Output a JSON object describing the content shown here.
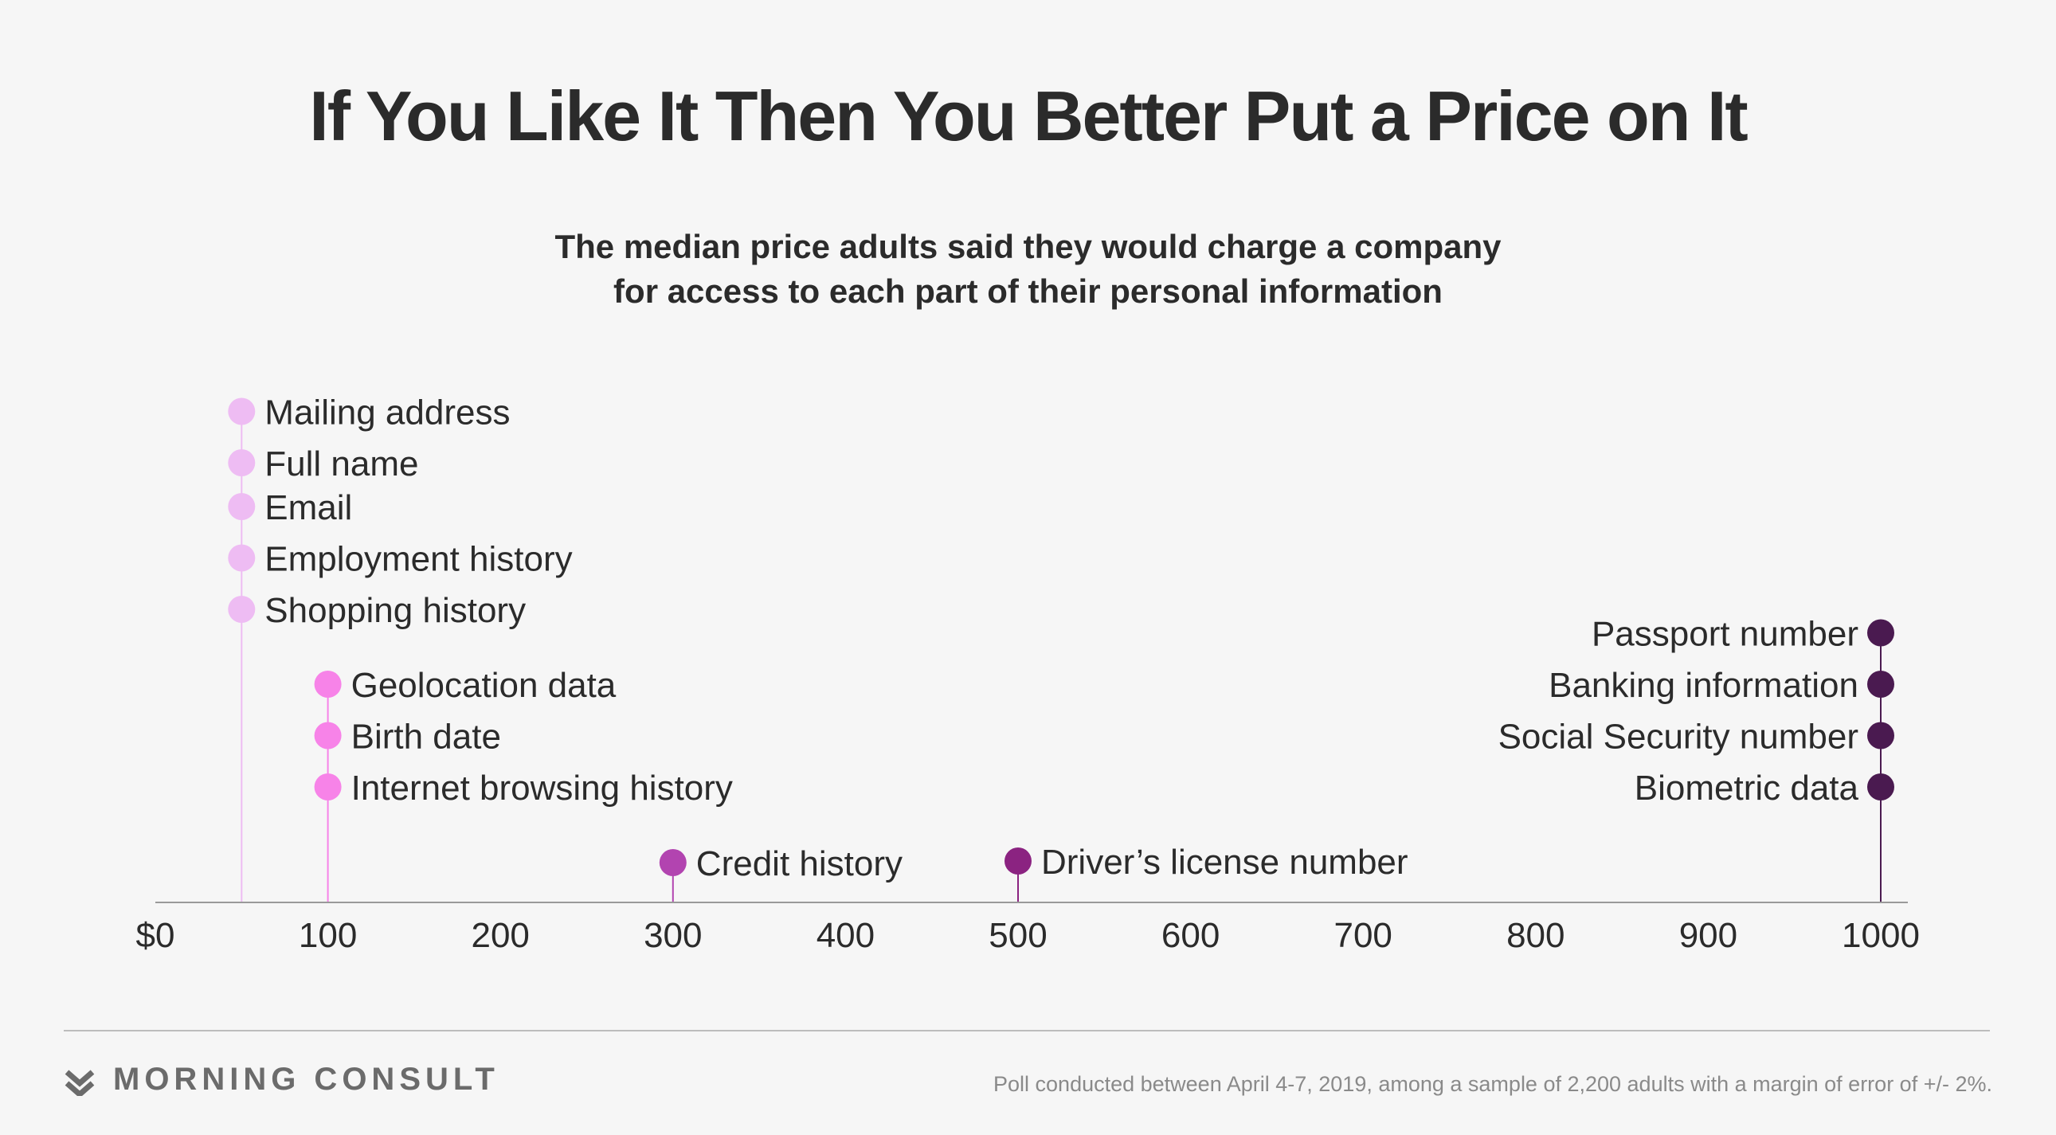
{
  "chart_data": {
    "type": "scatter",
    "title": "If You Like It Then You Better Put a Price on It",
    "subtitle_lines": [
      "The median price adults said they would charge a company",
      "for access to each part of their personal information"
    ],
    "xlabel": "",
    "ylabel": "",
    "xlim": [
      0,
      1000
    ],
    "x_tick_values": [
      0,
      100,
      200,
      300,
      400,
      500,
      600,
      700,
      800,
      900,
      1000
    ],
    "x_tick_labels": [
      "$0",
      "100",
      "200",
      "300",
      "400",
      "500",
      "600",
      "700",
      "800",
      "900",
      "1000"
    ],
    "groups": [
      {
        "value": 50,
        "color": "#eebcf3",
        "label_side": "right",
        "items": [
          "Mailing address",
          "Full name",
          "Email",
          "Employment history",
          "Shopping history"
        ]
      },
      {
        "value": 100,
        "color": "#f783e8",
        "label_side": "right",
        "items": [
          "Geolocation data",
          "Birth date",
          "Internet browsing history"
        ]
      },
      {
        "value": 300,
        "color": "#b244b0",
        "label_side": "right",
        "items": [
          "Credit history"
        ]
      },
      {
        "value": 500,
        "color": "#8b2381",
        "label_side": "right",
        "items": [
          "Driver’s license number"
        ]
      },
      {
        "value": 1000,
        "color": "#4a1a50",
        "label_side": "left",
        "items": [
          "Passport number",
          "Banking information",
          "Social Security number",
          "Biometric data"
        ]
      }
    ]
  },
  "footer": {
    "brand": "MORNING CONSULT",
    "logo_icon": "morning-consult-chevron-icon",
    "note": "Poll conducted between April 4-7, 2019, among a sample of 2,200 adults with a margin of error of +/- 2%."
  },
  "colors": {
    "background": "#f6f6f6",
    "text": "#2b2b2b",
    "axis": "#9a9a9a",
    "muted": "#8a8a8a"
  }
}
